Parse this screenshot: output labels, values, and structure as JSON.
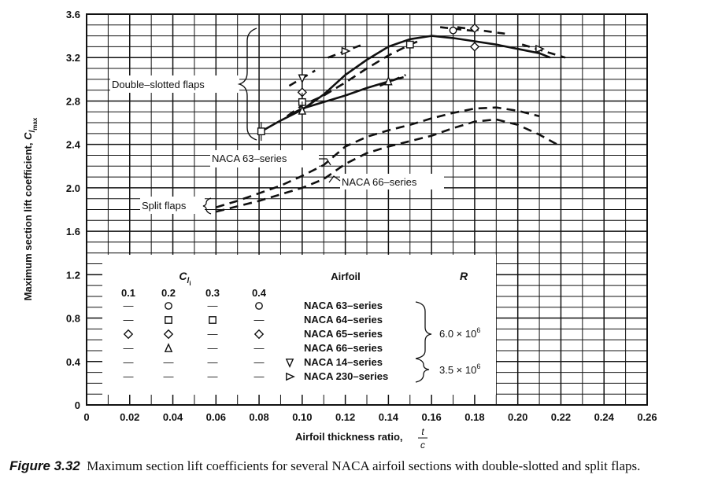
{
  "chart_data": {
    "type": "line",
    "xlabel": "Airfoil thickness ratio,",
    "xlabel_fraction": {
      "num": "t",
      "den": "c"
    },
    "ylabel": "Maximum section lift coefficient,",
    "ylabel_symbol": {
      "base": "C",
      "sub": "l",
      "subsub": "max"
    },
    "xlim": [
      0,
      0.26
    ],
    "ylim": [
      0,
      3.6
    ],
    "x_ticks": [
      "0",
      "0.02",
      "0.04",
      "0.06",
      "0.08",
      "0.10",
      "0.12",
      "0.14",
      "0.16",
      "0.18",
      "0.20",
      "0.22",
      "0.24",
      "0.26"
    ],
    "x_tick_values": [
      0,
      0.02,
      0.04,
      0.06,
      0.08,
      0.1,
      0.12,
      0.14,
      0.16,
      0.18,
      0.2,
      0.22,
      0.24,
      0.26
    ],
    "y_ticks": [
      "0",
      "0.4",
      "0.8",
      "1.2",
      "1.6",
      "2.0",
      "2.4",
      "2.8",
      "3.2",
      "3.6"
    ],
    "y_tick_values": [
      0,
      0.4,
      0.8,
      1.2,
      1.6,
      2.0,
      2.4,
      2.8,
      3.2,
      3.6
    ],
    "grid": true,
    "series": [
      {
        "name": "Double-slotted flaps (main)",
        "style": "solid",
        "x": [
          0.081,
          0.09,
          0.1,
          0.11,
          0.12,
          0.13,
          0.14,
          0.15,
          0.16,
          0.17,
          0.18,
          0.19,
          0.2,
          0.21,
          0.215
        ],
        "y": [
          2.52,
          2.62,
          2.72,
          2.86,
          3.04,
          3.18,
          3.3,
          3.37,
          3.4,
          3.38,
          3.35,
          3.32,
          3.28,
          3.24,
          3.2
        ]
      },
      {
        "name": "Double-slotted flaps (lower solid)",
        "style": "solid",
        "x": [
          0.093,
          0.1,
          0.11,
          0.12,
          0.13,
          0.14,
          0.147
        ],
        "y": [
          2.66,
          2.73,
          2.79,
          2.85,
          2.92,
          2.98,
          3.02
        ]
      },
      {
        "name": "Double-slotted flaps (dashed)",
        "style": "dashed",
        "x": [
          0.093,
          0.1,
          0.11,
          0.12,
          0.13,
          0.14,
          0.15,
          0.155
        ],
        "y": [
          2.66,
          2.76,
          2.85,
          2.97,
          3.1,
          3.22,
          3.32,
          3.36
        ]
      },
      {
        "name": "Split flaps, NACA 63-series",
        "style": "dashed",
        "x": [
          0.06,
          0.07,
          0.08,
          0.09,
          0.1,
          0.11,
          0.12,
          0.13,
          0.14,
          0.15,
          0.16,
          0.17,
          0.18,
          0.19,
          0.2,
          0.21
        ],
        "y": [
          1.82,
          1.88,
          1.95,
          2.02,
          2.11,
          2.21,
          2.38,
          2.47,
          2.53,
          2.58,
          2.64,
          2.69,
          2.73,
          2.74,
          2.71,
          2.66
        ]
      },
      {
        "name": "Split flaps, NACA 66-series",
        "style": "dashed",
        "x": [
          0.06,
          0.07,
          0.08,
          0.09,
          0.1,
          0.11,
          0.12,
          0.13,
          0.14,
          0.15,
          0.16,
          0.17,
          0.18,
          0.19,
          0.2,
          0.21,
          0.22
        ],
        "y": [
          1.78,
          1.83,
          1.88,
          1.94,
          2.0,
          2.08,
          2.22,
          2.32,
          2.38,
          2.43,
          2.48,
          2.55,
          2.61,
          2.63,
          2.58,
          2.49,
          2.38
        ]
      }
    ],
    "fairing_lines": [
      {
        "x": [
          0.094,
          0.106
        ],
        "y": [
          2.94,
          3.08
        ]
      },
      {
        "x": [
          0.112,
          0.128
        ],
        "y": [
          3.2,
          3.32
        ]
      },
      {
        "x": [
          0.164,
          0.182
        ],
        "y": [
          3.48,
          3.44
        ]
      },
      {
        "x": [
          0.172,
          0.194
        ],
        "y": [
          3.48,
          3.42
        ]
      },
      {
        "x": [
          0.202,
          0.222
        ],
        "y": [
          3.32,
          3.2
        ]
      },
      {
        "x": [
          0.136,
          0.148
        ],
        "y": [
          2.94,
          3.04
        ]
      }
    ],
    "points": [
      {
        "x": 0.081,
        "y": 2.52,
        "marker": "square"
      },
      {
        "x": 0.1,
        "y": 3.01,
        "marker": "down-triangle"
      },
      {
        "x": 0.1,
        "y": 2.88,
        "marker": "diamond"
      },
      {
        "x": 0.1,
        "y": 2.79,
        "marker": "square"
      },
      {
        "x": 0.1,
        "y": 2.71,
        "marker": "triangle"
      },
      {
        "x": 0.12,
        "y": 3.26,
        "marker": "right-triangle"
      },
      {
        "x": 0.14,
        "y": 2.98,
        "marker": "triangle"
      },
      {
        "x": 0.15,
        "y": 3.32,
        "marker": "square"
      },
      {
        "x": 0.17,
        "y": 3.45,
        "marker": "circle"
      },
      {
        "x": 0.18,
        "y": 3.47,
        "marker": "diamond"
      },
      {
        "x": 0.18,
        "y": 3.3,
        "marker": "diamond"
      },
      {
        "x": 0.21,
        "y": 3.28,
        "marker": "right-triangle"
      }
    ],
    "annotations": {
      "double_slotted": "Double–slotted flaps",
      "naca63": "NACA 63–series",
      "naca66": "NACA 66–series",
      "split": "Split flaps"
    },
    "legend": {
      "cli_label": {
        "base": "C",
        "sub": "l",
        "subsub": "i"
      },
      "airfoil_header": "Airfoil",
      "r_header": "R",
      "cli_values": [
        "0.1",
        "0.2",
        "0.3",
        "0.4"
      ],
      "rows": [
        {
          "airfoil": "NACA 63–series",
          "marks": [
            "—",
            "circle",
            "—",
            "circle"
          ],
          "right": "none"
        },
        {
          "airfoil": "NACA 64–series",
          "marks": [
            "—",
            "square",
            "square",
            "—"
          ],
          "right": "none"
        },
        {
          "airfoil": "NACA 65–series",
          "marks": [
            "diamond",
            "diamond",
            "—",
            "diamond"
          ],
          "right": "none"
        },
        {
          "airfoil": "NACA 66–series",
          "marks": [
            "—",
            "triangle",
            "—",
            "—"
          ],
          "right": "none"
        },
        {
          "airfoil": "NACA 14–series",
          "marks": [
            "—",
            "—",
            "—",
            "—"
          ],
          "right": "down-triangle"
        },
        {
          "airfoil": "NACA 230–series",
          "marks": [
            "—",
            "—",
            "—",
            "—"
          ],
          "right": "right-triangle"
        }
      ],
      "r_values": [
        {
          "base": "6.0 × 10",
          "exp": "6"
        },
        {
          "base": "3.5 × 10",
          "exp": "6"
        }
      ]
    }
  },
  "caption": {
    "figure": "Figure 3.32",
    "text": "Maximum section lift coefficients for several NACA airfoil sections with double-slotted and split flaps."
  }
}
